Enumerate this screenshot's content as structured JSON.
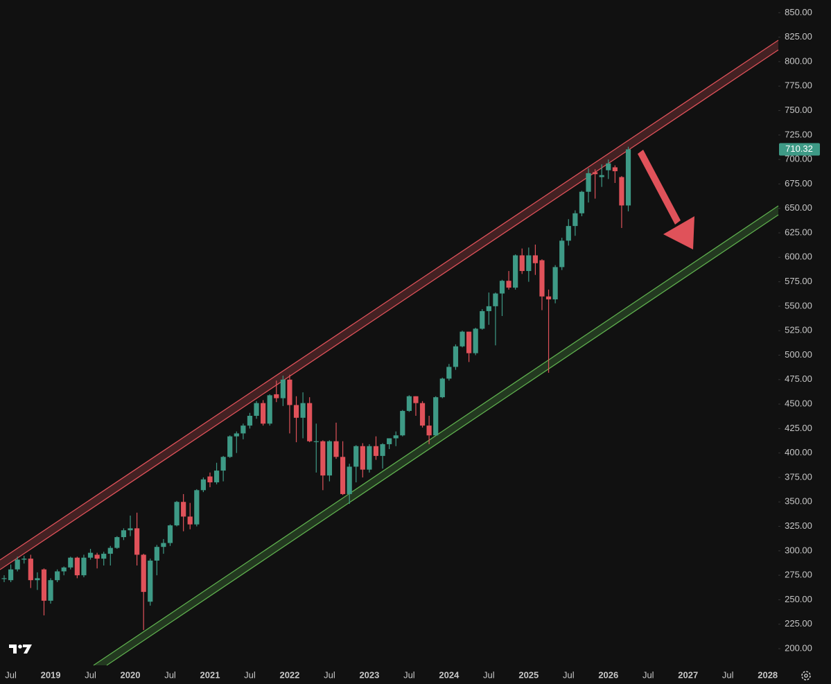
{
  "chart_data": {
    "type": "candlestick",
    "categories": [
      null,
      "Jul",
      null,
      null,
      null,
      null,
      null,
      "2019",
      null,
      null,
      null,
      null,
      null,
      "Jul",
      null,
      null,
      null,
      null,
      null,
      "2020",
      null,
      null,
      null,
      null,
      null,
      "Jul",
      null,
      null,
      null,
      null,
      null,
      "2021",
      null,
      null,
      null,
      null,
      null,
      "Jul",
      null,
      null,
      null,
      null,
      null,
      "2022",
      null,
      null,
      null,
      null,
      null,
      "Jul",
      null,
      null,
      null,
      null,
      null,
      "2023",
      null,
      null,
      null,
      null,
      null,
      "Jul",
      null,
      null,
      null,
      null,
      null,
      "2024",
      null,
      null,
      null,
      null,
      null,
      "Jul",
      null,
      null,
      null,
      null,
      null,
      "2025",
      null,
      null,
      null,
      null,
      null,
      "Jul",
      null,
      null,
      null,
      null,
      null,
      "2026",
      null,
      null,
      null,
      null,
      null,
      "Jul",
      null,
      null,
      null,
      null,
      null,
      "2027",
      null,
      null,
      null,
      null,
      null,
      "Jul",
      null,
      null,
      null,
      null,
      null,
      "2028"
    ],
    "open": [
      272,
      270,
      281,
      291,
      292,
      270,
      281,
      249,
      270,
      279,
      283,
      293,
      275,
      293,
      296,
      292,
      297,
      303,
      314,
      321,
      323,
      296,
      248,
      290,
      304,
      308,
      326,
      350,
      335,
      327,
      362,
      376,
      370,
      382,
      396,
      417,
      420,
      428,
      438,
      451,
      430,
      460,
      456,
      475,
      449,
      436,
      451,
      412,
      412,
      377,
      412,
      396,
      358,
      386,
      407,
      383,
      407,
      397,
      409,
      415,
      418,
      443,
      458,
      451,
      428,
      418,
      457,
      476,
      488,
      509,
      524,
      502,
      527,
      545,
      550,
      563,
      576,
      569,
      602,
      586,
      602,
      597,
      560,
      557,
      590,
      617,
      632,
      645,
      667,
      687,
      682,
      689,
      692,
      682,
      653,
      null,
      null,
      null,
      null,
      null,
      null,
      null,
      null,
      null,
      null,
      null,
      null,
      null,
      null,
      null,
      null,
      null,
      null,
      null,
      null,
      null
    ],
    "high": [
      275,
      286,
      294,
      295,
      296,
      278,
      282,
      272,
      281,
      284,
      294,
      294,
      296,
      302,
      298,
      299,
      305,
      315,
      323,
      336,
      339,
      297,
      292,
      306,
      312,
      327,
      351,
      358,
      349,
      363,
      375,
      380,
      390,
      397,
      418,
      422,
      430,
      441,
      453,
      454,
      460,
      474,
      479,
      480,
      458,
      462,
      457,
      430,
      413,
      413,
      431,
      412,
      389,
      408,
      410,
      409,
      417,
      410,
      415,
      422,
      444,
      459,
      458,
      453,
      438,
      458,
      477,
      491,
      511,
      525,
      524,
      528,
      547,
      564,
      564,
      577,
      586,
      603,
      609,
      610,
      613,
      598,
      567,
      592,
      620,
      639,
      648,
      668,
      691,
      690,
      695,
      700,
      694,
      683,
      713,
      null,
      null,
      null,
      null,
      null,
      null,
      null,
      null,
      null,
      null,
      null,
      null,
      null,
      null,
      null,
      null,
      null,
      null,
      null,
      null,
      null
    ],
    "low": [
      268,
      268,
      279,
      287,
      262,
      260,
      234,
      246,
      268,
      275,
      281,
      272,
      273,
      291,
      282,
      285,
      285,
      302,
      311,
      315,
      285,
      219,
      244,
      275,
      297,
      305,
      325,
      320,
      322,
      325,
      360,
      365,
      368,
      371,
      395,
      400,
      414,
      425,
      435,
      428,
      428,
      452,
      448,
      420,
      411,
      415,
      411,
      380,
      362,
      371,
      394,
      357,
      348,
      370,
      375,
      380,
      393,
      384,
      404,
      407,
      417,
      442,
      438,
      426,
      409,
      418,
      456,
      474,
      485,
      508,
      493,
      500,
      526,
      531,
      510,
      540,
      567,
      567,
      583,
      575,
      582,
      546,
      482,
      553,
      587,
      612,
      622,
      642,
      656,
      660,
      672,
      680,
      676,
      630,
      647,
      null,
      null,
      null,
      null,
      null,
      null,
      null,
      null,
      null,
      null,
      null,
      null,
      null,
      null,
      null,
      null,
      null,
      null,
      null,
      null,
      null
    ],
    "close": [
      272,
      281,
      291,
      292,
      270,
      272,
      249,
      270,
      279,
      283,
      293,
      275,
      293,
      298,
      292,
      297,
      303,
      314,
      321,
      323,
      296,
      258,
      290,
      304,
      308,
      326,
      350,
      335,
      327,
      362,
      373,
      370,
      382,
      396,
      417,
      420,
      428,
      438,
      451,
      430,
      459,
      456,
      475,
      449,
      436,
      451,
      412,
      412,
      377,
      412,
      396,
      358,
      386,
      407,
      383,
      407,
      397,
      409,
      415,
      418,
      443,
      458,
      451,
      428,
      418,
      457,
      476,
      488,
      509,
      524,
      502,
      527,
      545,
      550,
      563,
      576,
      569,
      602,
      586,
      602,
      594,
      560,
      557,
      590,
      617,
      632,
      645,
      667,
      686,
      685,
      684,
      696,
      688,
      653,
      710.32,
      null,
      null,
      null,
      null,
      null,
      null,
      null,
      null,
      null,
      null,
      null,
      null,
      null,
      null,
      null,
      null,
      null,
      null,
      null,
      null,
      null
    ],
    "up_color": "#3e9a86",
    "down_color": "#e0525a",
    "ylim": [
      183,
      863
    ],
    "yticks": [
      {
        "value": 200,
        "label": "200.00"
      },
      {
        "value": 225,
        "label": "225.00"
      },
      {
        "value": 250,
        "label": "250.00"
      },
      {
        "value": 275,
        "label": "275.00"
      },
      {
        "value": 300,
        "label": "300.00"
      },
      {
        "value": 325,
        "label": "325.00"
      },
      {
        "value": 350,
        "label": "350.00"
      },
      {
        "value": 375,
        "label": "375.00"
      },
      {
        "value": 400,
        "label": "400.00"
      },
      {
        "value": 425,
        "label": "425.00"
      },
      {
        "value": 450,
        "label": "450.00"
      },
      {
        "value": 475,
        "label": "475.00"
      },
      {
        "value": 500,
        "label": "500.00"
      },
      {
        "value": 525,
        "label": "525.00"
      },
      {
        "value": 550,
        "label": "550.00"
      },
      {
        "value": 575,
        "label": "575.00"
      },
      {
        "value": 600,
        "label": "600.00"
      },
      {
        "value": 625,
        "label": "625.00"
      },
      {
        "value": 650,
        "label": "650.00"
      },
      {
        "value": 675,
        "label": "675.00"
      },
      {
        "value": 700,
        "label": "700.00"
      },
      {
        "value": 725,
        "label": "725.00"
      },
      {
        "value": 750,
        "label": "750.00"
      },
      {
        "value": 775,
        "label": "775.00"
      },
      {
        "value": 800,
        "label": "800.00"
      },
      {
        "value": 825,
        "label": "825.00"
      },
      {
        "value": 850,
        "label": "850.00"
      }
    ],
    "grid": false
  }
}
